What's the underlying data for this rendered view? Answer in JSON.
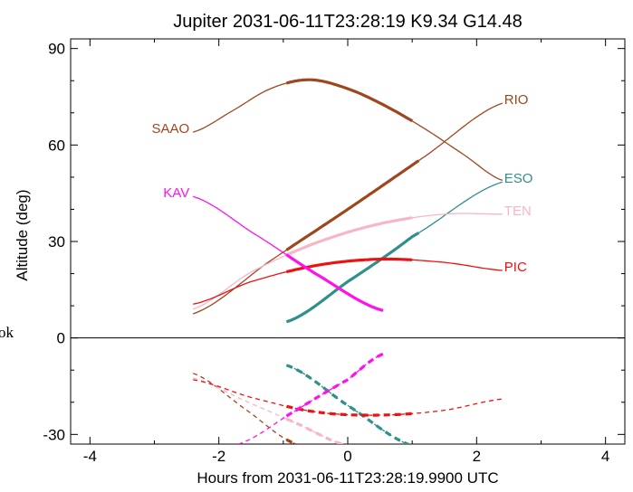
{
  "chart_data": {
    "type": "line",
    "title": "Jupiter 2031-06-11T23:28:19  K9.34  G14.48",
    "xlabel": "Hours from 2031-06-11T23:28:19.9900 UTC",
    "ylabel": "Altitude (deg)",
    "xlim": [
      -4.3,
      4.3
    ],
    "ylim": [
      -33,
      93
    ],
    "x_ticks": [
      "-4",
      "-2",
      "0",
      "2",
      "4"
    ],
    "y_ticks": [
      "-30",
      "0",
      "30",
      "60",
      "90"
    ],
    "cutoff_text": "ok",
    "series": [
      {
        "name": "SAAO",
        "color": "#a0461e",
        "x": [
          -2.4,
          -1.8,
          -1.2,
          -0.6,
          0.0,
          0.6,
          1.2,
          1.8,
          2.4
        ],
        "y": [
          64,
          70.5,
          77.5,
          80.3,
          77.5,
          72,
          65,
          57,
          49
        ],
        "thick": [
          -0.95,
          1.0
        ]
      },
      {
        "name": "RIO",
        "color": "#a0461e",
        "x": [
          -2.4,
          -1.2,
          0.0,
          1.2,
          2.4
        ],
        "y": [
          7.5,
          24,
          40,
          56.5,
          73
        ],
        "thick": [
          -0.95,
          1.1
        ],
        "below": {
          "x": [
            -2.4,
            -1.6,
            -0.8
          ],
          "y": [
            -11,
            -22,
            -33
          ]
        }
      },
      {
        "name": "ESO",
        "color": "#2f8f8a",
        "x": [
          -0.95,
          0.0,
          1.0,
          2.4
        ],
        "y": [
          5,
          17.5,
          31.5,
          48.5
        ],
        "thick": [
          -0.95,
          1.1
        ],
        "below": {
          "x": [
            -0.95,
            0.0,
            1.0
          ],
          "y": [
            -8.5,
            -21,
            -33.5
          ]
        }
      },
      {
        "name": "TEN",
        "color": "#f7b6c6",
        "x": [
          -2.4,
          -1.5,
          -0.5,
          0.5,
          1.5,
          2.4
        ],
        "y": [
          9,
          20.5,
          29.5,
          35.5,
          38.5,
          38.5
        ],
        "thick": [
          -0.95,
          1.0
        ],
        "below": {
          "x": [
            -2.4,
            -1.6,
            -0.8,
            0.0
          ],
          "y": [
            -12.5,
            -19.5,
            -26.5,
            -33.5
          ]
        }
      },
      {
        "name": "PIC",
        "color": "#ee1111",
        "x": [
          -2.4,
          -1.5,
          -0.5,
          0.5,
          1.5,
          2.4
        ],
        "y": [
          10.5,
          17.5,
          22.5,
          24.5,
          23.5,
          21
        ],
        "thick": [
          -0.95,
          1.0
        ],
        "below": {
          "x": [
            -2.4,
            -1.5,
            -0.5,
            0.5,
            1.5,
            2.4
          ],
          "y": [
            -13,
            -18.5,
            -23,
            -24,
            -22.5,
            -19
          ]
        }
      },
      {
        "name": "KAV",
        "color": "#ff11ee",
        "x": [
          -2.4,
          -1.5,
          -0.5,
          0.55
        ],
        "y": [
          44,
          33,
          20,
          8.5
        ],
        "thick": [
          -0.95,
          0.55
        ],
        "below": {
          "x": [
            -1.7,
            -0.8,
            0.0,
            0.55
          ],
          "y": [
            -33,
            -22.5,
            -13,
            -5
          ]
        }
      }
    ]
  }
}
